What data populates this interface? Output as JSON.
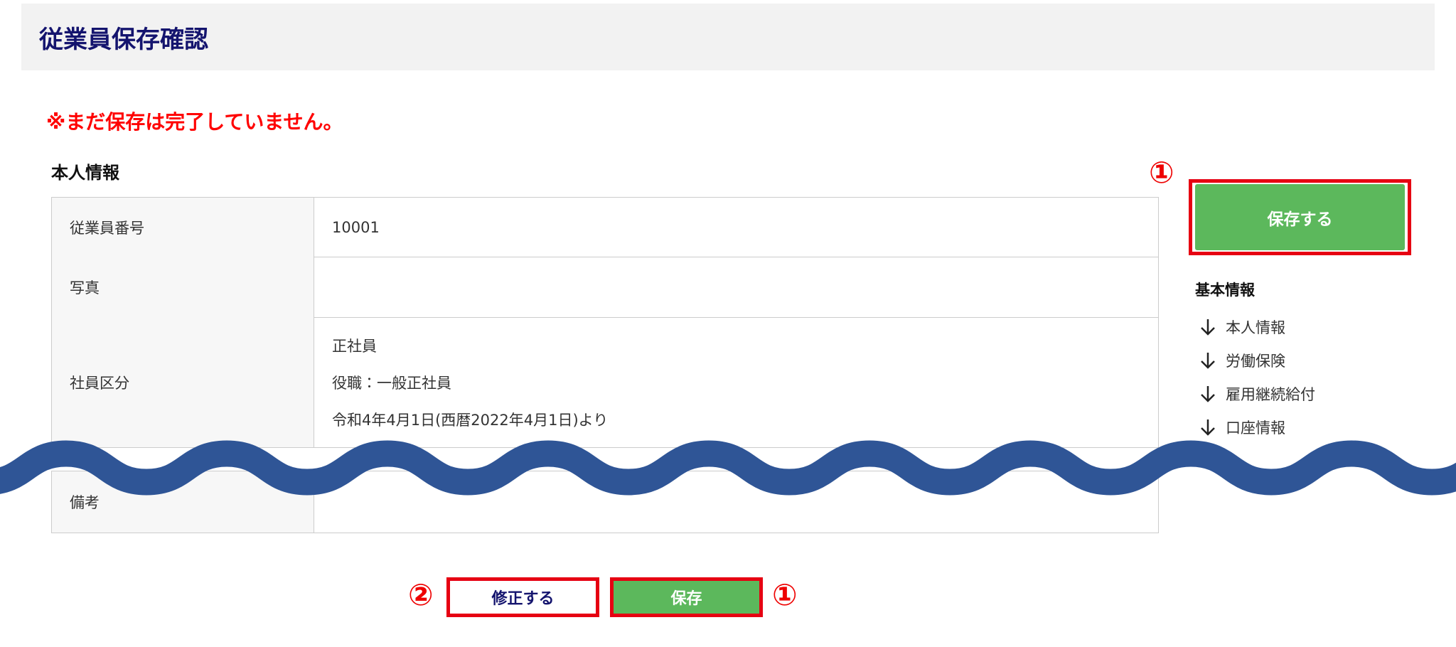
{
  "header": {
    "title": "従業員保存確認"
  },
  "notice": "※まだ保存は完了していません。",
  "section_title": "本人情報",
  "table": {
    "rows": [
      {
        "label": "従業員番号",
        "lines": [
          "10001"
        ]
      },
      {
        "label": "写真",
        "lines": []
      },
      {
        "label": "社員区分",
        "lines": [
          "正社員",
          "役職：一般正社員",
          "令和4年4月1日(西暦2022年4月1日)より"
        ]
      },
      {
        "label": "備考",
        "lines": []
      }
    ]
  },
  "sidebar": {
    "save_button": "保存する",
    "nav_title": "基本情報",
    "nav_links": [
      "本人情報",
      "労働保険",
      "雇用継続給付",
      "口座情報"
    ]
  },
  "footer_buttons": {
    "edit": "修正する",
    "save": "保存"
  },
  "annotations": {
    "save_top": "①",
    "edit": "②",
    "save_bottom": "①"
  }
}
